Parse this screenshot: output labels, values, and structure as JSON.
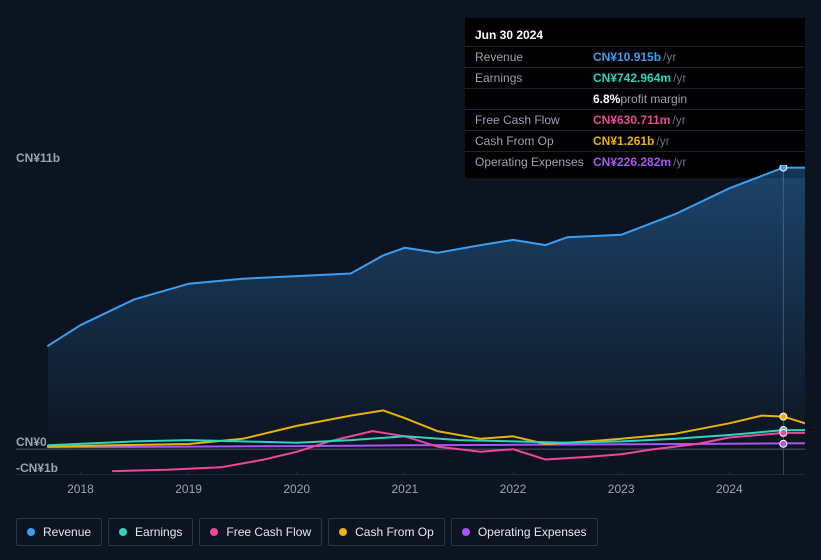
{
  "colors": {
    "revenue": "#3b9ef3",
    "earnings": "#2dd4bf",
    "fcf": "#ec4899",
    "cfo": "#eab308",
    "opex": "#a855f7",
    "grid": "#1f2a3d",
    "baseline": "#4b5563",
    "text_muted": "#9aa4b2",
    "bg": "#0d1421"
  },
  "tooltip": {
    "date": "Jun 30 2024",
    "rows": [
      {
        "label": "Revenue",
        "value": "CN¥10.915b",
        "unit": "/yr",
        "color": "#3b9ef3"
      },
      {
        "label": "Earnings",
        "value": "CN¥742.964m",
        "unit": "/yr",
        "color": "#2dd4bf",
        "margin_pct": "6.8%",
        "margin_label": "profit margin"
      },
      {
        "label": "Free Cash Flow",
        "value": "CN¥630.711m",
        "unit": "/yr",
        "color": "#ec4899"
      },
      {
        "label": "Cash From Op",
        "value": "CN¥1.261b",
        "unit": "/yr",
        "color": "#eab308"
      },
      {
        "label": "Operating Expenses",
        "value": "CN¥226.282m",
        "unit": "/yr",
        "color": "#a855f7"
      }
    ]
  },
  "chart": {
    "type": "area-line",
    "x_domain": [
      2017.7,
      2024.7
    ],
    "y_domain_b": [
      -1,
      11
    ],
    "y_ticks": [
      {
        "v": 11,
        "label": "CN¥11b"
      },
      {
        "v": 0,
        "label": "CN¥0"
      },
      {
        "v": -1,
        "label": "-CN¥1b"
      }
    ],
    "x_ticks": [
      2018,
      2019,
      2020,
      2021,
      2022,
      2023,
      2024
    ],
    "vline_x": 2024.5,
    "series": {
      "revenue": {
        "color": "#3b9ef3",
        "width": 2,
        "fill_opacity": 0.18,
        "points": [
          [
            2017.7,
            4.0
          ],
          [
            2018.0,
            4.8
          ],
          [
            2018.5,
            5.8
          ],
          [
            2019.0,
            6.4
          ],
          [
            2019.5,
            6.6
          ],
          [
            2020.0,
            6.7
          ],
          [
            2020.5,
            6.8
          ],
          [
            2020.8,
            7.5
          ],
          [
            2021.0,
            7.8
          ],
          [
            2021.3,
            7.6
          ],
          [
            2021.7,
            7.9
          ],
          [
            2022.0,
            8.1
          ],
          [
            2022.3,
            7.9
          ],
          [
            2022.5,
            8.2
          ],
          [
            2023.0,
            8.3
          ],
          [
            2023.5,
            9.1
          ],
          [
            2024.0,
            10.1
          ],
          [
            2024.5,
            10.9
          ],
          [
            2024.7,
            10.9
          ]
        ]
      },
      "earnings": {
        "color": "#2dd4bf",
        "width": 2,
        "fill_opacity": 0,
        "points": [
          [
            2017.7,
            0.15
          ],
          [
            2018.5,
            0.3
          ],
          [
            2019.0,
            0.35
          ],
          [
            2019.5,
            0.3
          ],
          [
            2020.0,
            0.25
          ],
          [
            2020.5,
            0.35
          ],
          [
            2021.0,
            0.5
          ],
          [
            2021.5,
            0.35
          ],
          [
            2022.0,
            0.3
          ],
          [
            2022.5,
            0.25
          ],
          [
            2023.0,
            0.3
          ],
          [
            2023.5,
            0.4
          ],
          [
            2024.0,
            0.55
          ],
          [
            2024.5,
            0.74
          ],
          [
            2024.7,
            0.74
          ]
        ]
      },
      "fcf": {
        "color": "#ec4899",
        "width": 2,
        "fill_opacity": 0,
        "points": [
          [
            2018.3,
            -0.85
          ],
          [
            2018.8,
            -0.8
          ],
          [
            2019.3,
            -0.7
          ],
          [
            2019.7,
            -0.4
          ],
          [
            2020.0,
            -0.1
          ],
          [
            2020.3,
            0.3
          ],
          [
            2020.7,
            0.7
          ],
          [
            2021.0,
            0.5
          ],
          [
            2021.3,
            0.1
          ],
          [
            2021.7,
            -0.1
          ],
          [
            2022.0,
            0.0
          ],
          [
            2022.3,
            -0.4
          ],
          [
            2022.7,
            -0.3
          ],
          [
            2023.0,
            -0.2
          ],
          [
            2023.3,
            0.0
          ],
          [
            2023.7,
            0.2
          ],
          [
            2024.0,
            0.45
          ],
          [
            2024.5,
            0.63
          ],
          [
            2024.7,
            0.63
          ]
        ]
      },
      "cfo": {
        "color": "#eab308",
        "width": 2,
        "fill_opacity": 0,
        "points": [
          [
            2017.7,
            0.1
          ],
          [
            2018.3,
            0.15
          ],
          [
            2019.0,
            0.2
          ],
          [
            2019.5,
            0.4
          ],
          [
            2020.0,
            0.9
          ],
          [
            2020.5,
            1.3
          ],
          [
            2020.8,
            1.5
          ],
          [
            2021.0,
            1.2
          ],
          [
            2021.3,
            0.7
          ],
          [
            2021.7,
            0.4
          ],
          [
            2022.0,
            0.5
          ],
          [
            2022.3,
            0.2
          ],
          [
            2022.7,
            0.3
          ],
          [
            2023.0,
            0.4
          ],
          [
            2023.5,
            0.6
          ],
          [
            2024.0,
            1.0
          ],
          [
            2024.3,
            1.3
          ],
          [
            2024.5,
            1.26
          ],
          [
            2024.7,
            1.0
          ]
        ]
      },
      "opex": {
        "color": "#a855f7",
        "width": 2,
        "fill_opacity": 0,
        "points": [
          [
            2017.7,
            0.08
          ],
          [
            2019.0,
            0.1
          ],
          [
            2020.0,
            0.12
          ],
          [
            2021.0,
            0.15
          ],
          [
            2022.0,
            0.17
          ],
          [
            2023.0,
            0.19
          ],
          [
            2024.0,
            0.21
          ],
          [
            2024.7,
            0.23
          ]
        ]
      }
    }
  },
  "legend": [
    {
      "key": "revenue",
      "label": "Revenue",
      "color": "#3b9ef3"
    },
    {
      "key": "earnings",
      "label": "Earnings",
      "color": "#2dd4bf"
    },
    {
      "key": "fcf",
      "label": "Free Cash Flow",
      "color": "#ec4899"
    },
    {
      "key": "cfo",
      "label": "Cash From Op",
      "color": "#eab308"
    },
    {
      "key": "opex",
      "label": "Operating Expenses",
      "color": "#a855f7"
    }
  ]
}
